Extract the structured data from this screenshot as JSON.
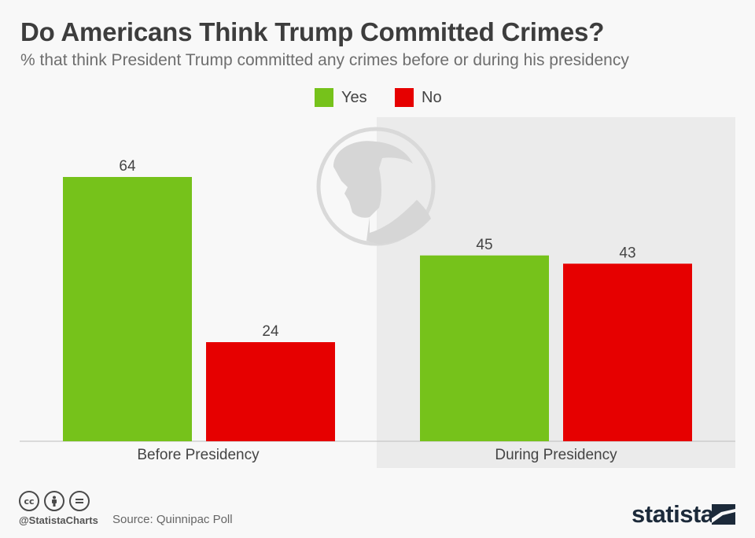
{
  "header": {
    "title": "Do Americans Think Trump Committed Crimes?",
    "subtitle": "% that think President Trump committed any crimes before or during his presidency"
  },
  "legend": [
    {
      "label": "Yes",
      "color": "#76c21b"
    },
    {
      "label": "No",
      "color": "#e60000"
    }
  ],
  "chart_data": {
    "type": "bar",
    "title": "Do Americans Think Trump Committed Crimes?",
    "subtitle": "% that think President Trump committed any crimes before or during his presidency",
    "categories": [
      "Before Presidency",
      "During Presidency"
    ],
    "series": [
      {
        "name": "Yes",
        "values": [
          64,
          45
        ],
        "color": "#76c21b"
      },
      {
        "name": "No",
        "values": [
          24,
          43
        ],
        "color": "#e60000"
      }
    ],
    "xlabel": "",
    "ylabel": "%",
    "ylim": [
      0,
      100
    ],
    "grid": false,
    "legend_position": "top-center",
    "highlighted_category": "During Presidency"
  },
  "footer": {
    "handle": "@StatistaCharts",
    "source": "Source: Quinnipac Poll",
    "brand": "statista",
    "license_icons": [
      "cc",
      "by",
      "nd"
    ]
  },
  "colors": {
    "highlight_panel": "#ebebeb",
    "background": "#f8f8f8"
  }
}
